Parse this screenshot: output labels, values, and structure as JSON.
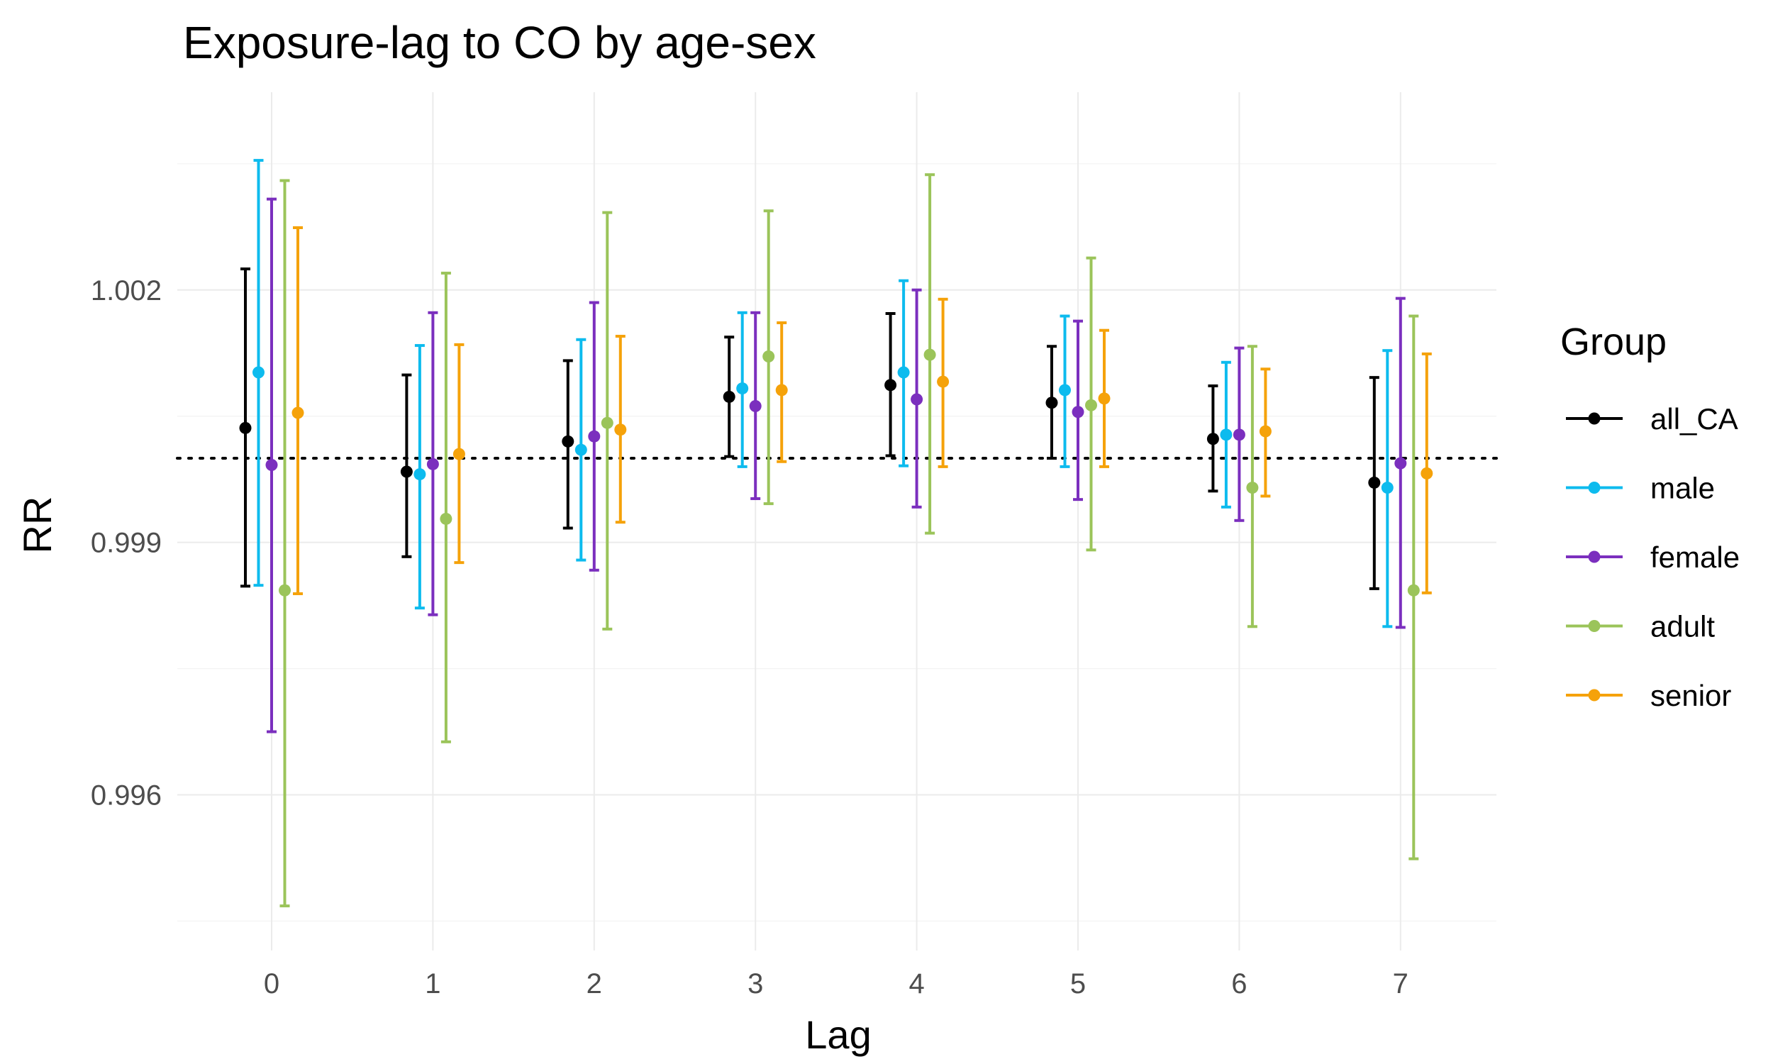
{
  "chart_data": {
    "type": "errorbar",
    "title": "Exposure-lag to CO by age-sex",
    "xlabel": "Lag",
    "ylabel": "RR",
    "categories": [
      "0",
      "1",
      "2",
      "3",
      "4",
      "5",
      "6",
      "7"
    ],
    "ylim": [
      0.99415,
      1.00435
    ],
    "yticks": [
      0.996,
      0.999,
      1.002
    ],
    "ytick_labels": [
      "0.996",
      "0.999",
      "1.002"
    ],
    "reference_line": 1.0,
    "grid": true,
    "legend": {
      "title": "Group",
      "position": "right"
    },
    "series": [
      {
        "name": "all_CA",
        "color": "#000000",
        "estimate": [
          1.00036,
          0.99984,
          1.0002,
          1.00073,
          1.00087,
          1.00066,
          1.00023,
          0.99971
        ],
        "lower": [
          0.99848,
          0.99883,
          0.99917,
          1.00002,
          1.00003,
          1.0,
          0.99961,
          0.99845
        ],
        "upper": [
          1.00225,
          1.00099,
          1.00116,
          1.00144,
          1.00172,
          1.00133,
          1.00086,
          1.00096
        ]
      },
      {
        "name": "male",
        "color": "#0dbbee",
        "estimate": [
          1.00102,
          0.99981,
          1.0001,
          1.00083,
          1.00102,
          1.00081,
          1.00028,
          0.99965
        ],
        "lower": [
          0.99849,
          0.99822,
          0.99879,
          0.9999,
          0.99991,
          0.9999,
          0.99942,
          0.998
        ],
        "upper": [
          1.00354,
          1.00134,
          1.00141,
          1.00173,
          1.00211,
          1.00169,
          1.00114,
          1.00128
        ]
      },
      {
        "name": "female",
        "color": "#7b2fbe",
        "estimate": [
          0.99992,
          0.99993,
          1.00026,
          1.00062,
          1.0007,
          1.00055,
          1.00028,
          0.99994
        ],
        "lower": [
          0.99675,
          0.99814,
          0.99867,
          0.99952,
          0.99942,
          0.99951,
          0.99926,
          0.99799
        ],
        "upper": [
          1.00308,
          1.00173,
          1.00185,
          1.00173,
          1.002,
          1.00163,
          1.00131,
          1.0019
        ]
      },
      {
        "name": "adult",
        "color": "#9bc45a",
        "estimate": [
          0.99843,
          0.99928,
          1.00042,
          1.00121,
          1.00123,
          1.00063,
          0.99965,
          0.99843
        ],
        "lower": [
          0.99468,
          0.99663,
          0.99797,
          0.99946,
          0.99911,
          0.99891,
          0.998,
          0.99524
        ],
        "upper": [
          1.0033,
          1.0022,
          1.00292,
          1.00294,
          1.00337,
          1.00238,
          1.00133,
          1.00169
        ]
      },
      {
        "name": "senior",
        "color": "#f5a20a",
        "estimate": [
          1.00054,
          1.00005,
          1.00034,
          1.00081,
          1.00091,
          1.00071,
          1.00032,
          0.99982
        ],
        "lower": [
          0.99839,
          0.99876,
          0.99924,
          0.99996,
          0.9999,
          0.9999,
          0.99955,
          0.9984
        ],
        "upper": [
          1.00274,
          1.00135,
          1.00145,
          1.00161,
          1.00189,
          1.00152,
          1.00106,
          1.00124
        ]
      }
    ]
  }
}
